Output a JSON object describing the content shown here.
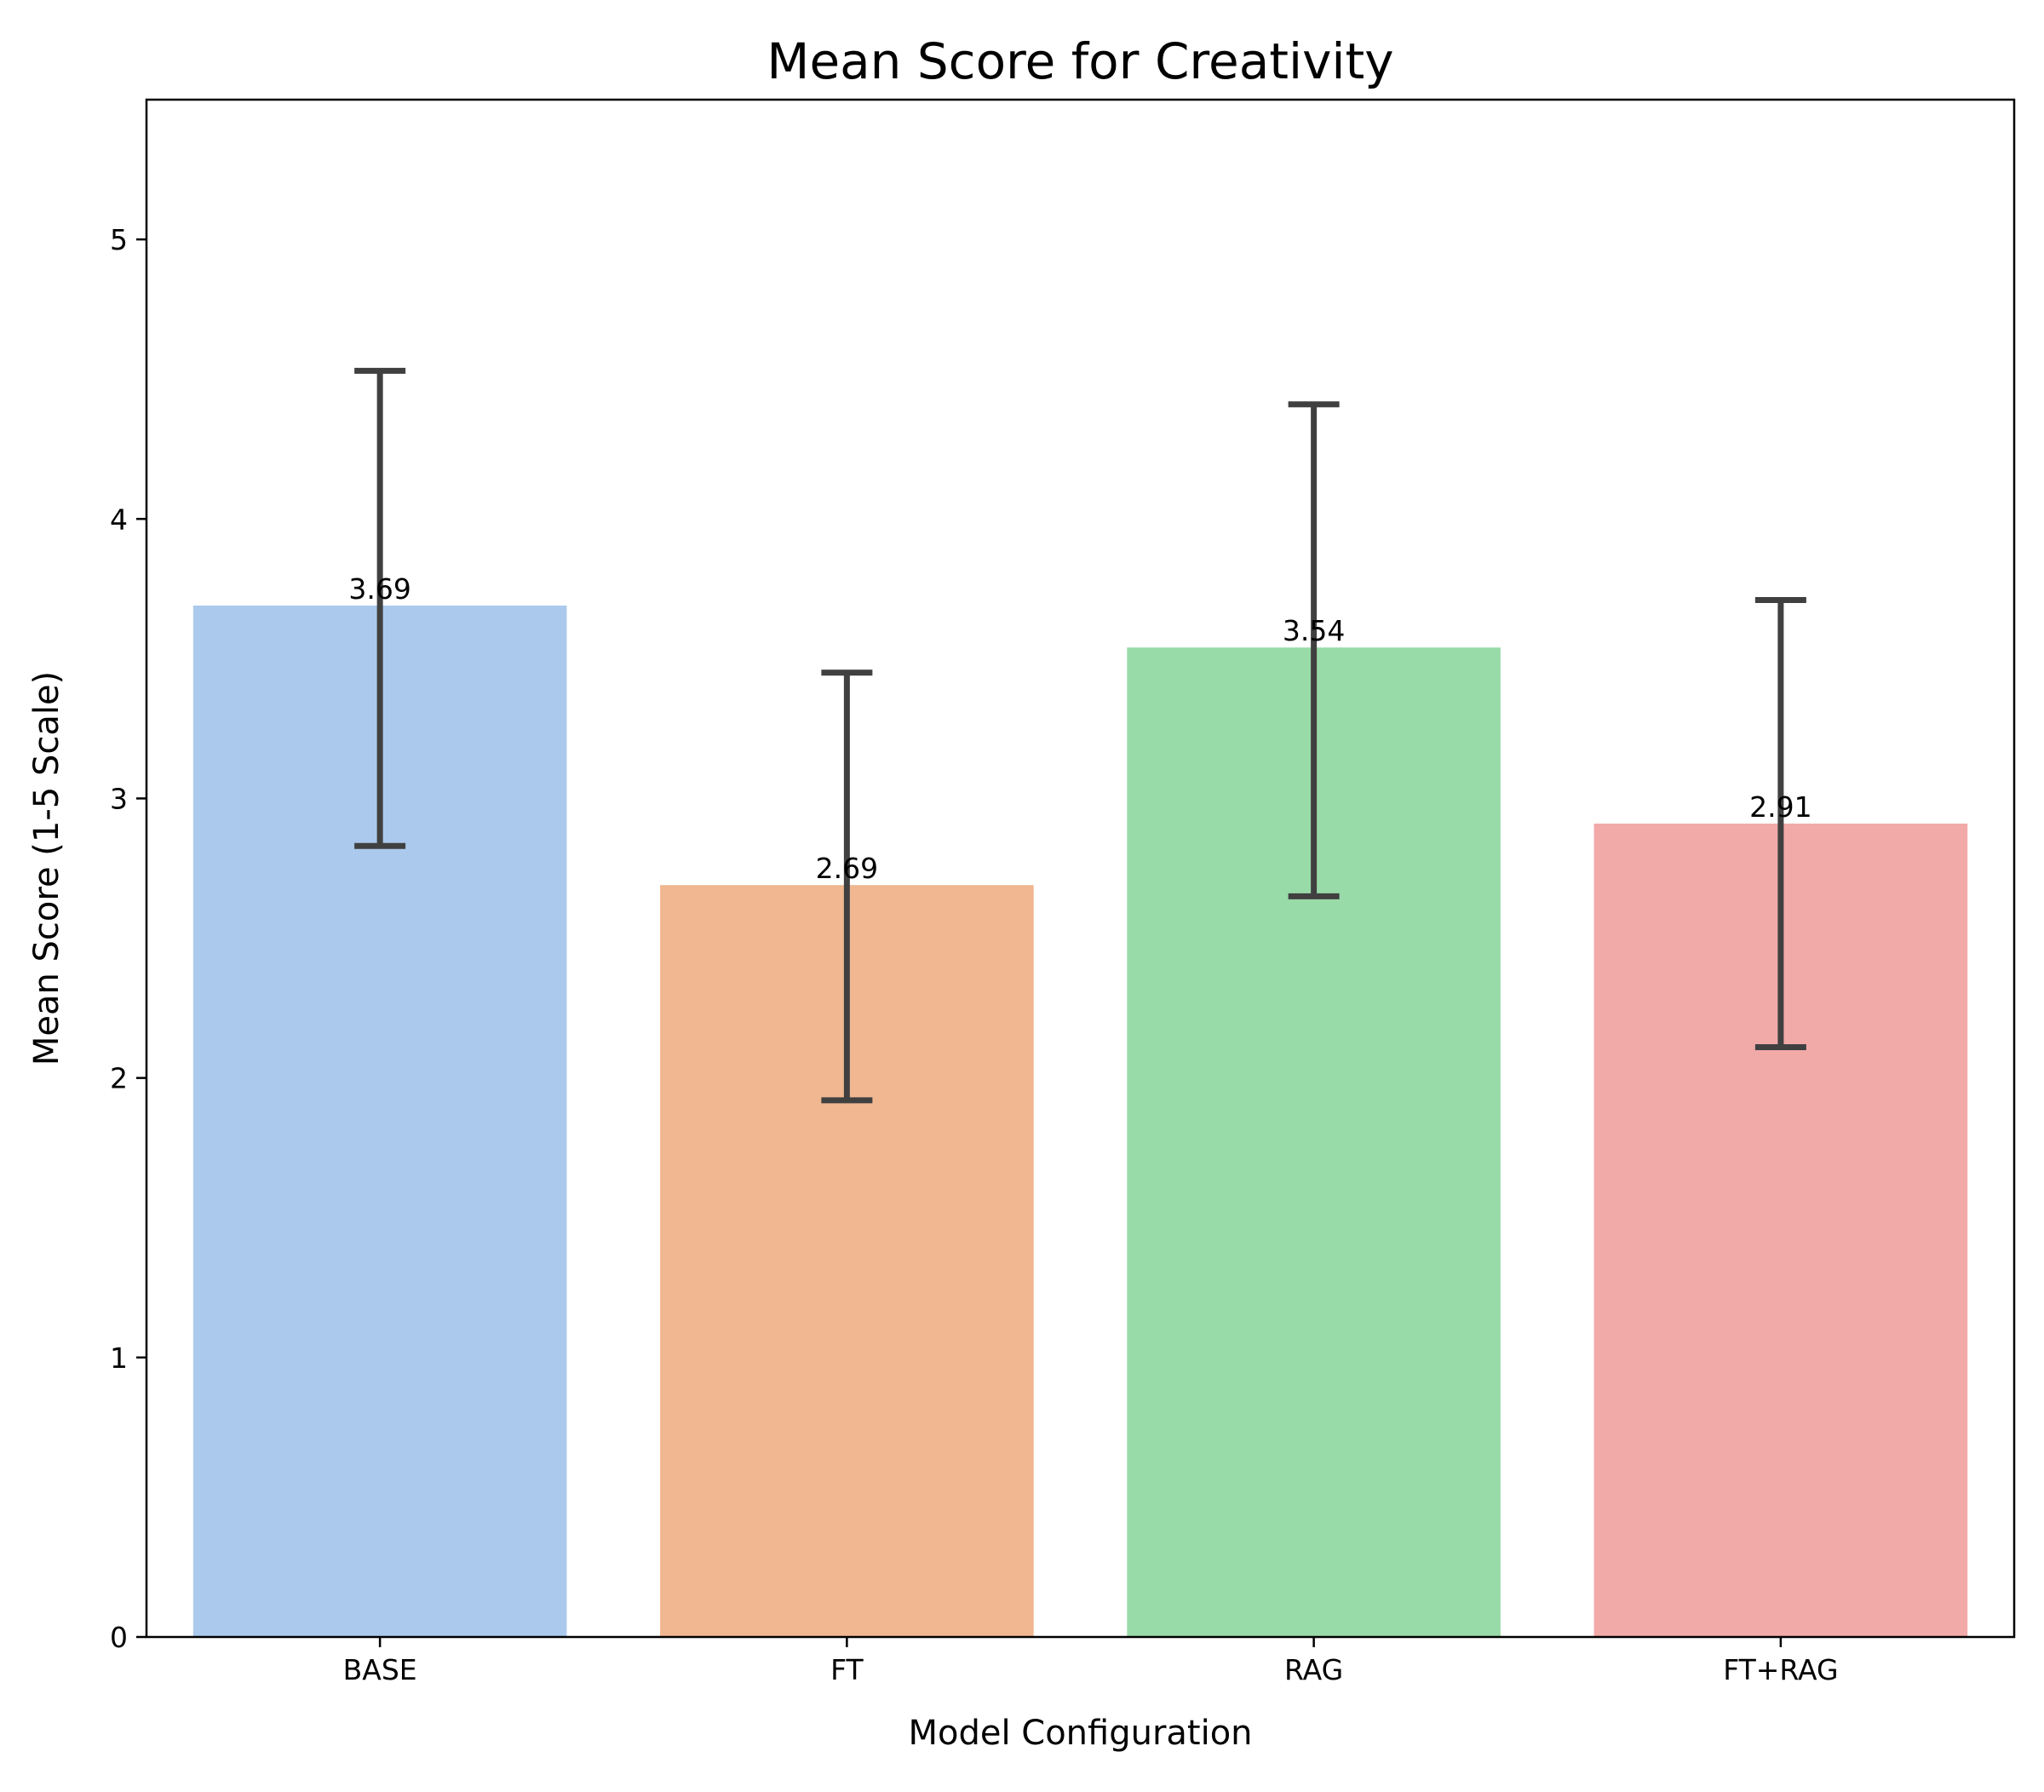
{
  "chart_data": {
    "type": "bar",
    "title": "Mean Score for Creativity",
    "xlabel": "Model Configuration",
    "ylabel": "Mean Score (1-5 Scale)",
    "categories": [
      "BASE",
      "FT",
      "RAG",
      "FT+RAG"
    ],
    "values": [
      3.69,
      2.69,
      3.54,
      2.91
    ],
    "value_labels": [
      "3.69",
      "2.69",
      "3.54",
      "2.91"
    ],
    "error_bars": [
      {
        "low": 2.83,
        "high": 4.53
      },
      {
        "low": 1.92,
        "high": 3.45
      },
      {
        "low": 2.65,
        "high": 4.41
      },
      {
        "low": 2.11,
        "high": 3.71
      }
    ],
    "colors": [
      "#abc9ec",
      "#f0b791",
      "#99dba8",
      "#f2aaa9"
    ],
    "error_color": "#404040",
    "ylim": [
      0,
      5.5
    ],
    "yticks": [
      0,
      1,
      2,
      3,
      4,
      5
    ],
    "ytick_labels": [
      "0",
      "1",
      "2",
      "3",
      "4",
      "5"
    ],
    "grid": false,
    "legend": "none"
  }
}
